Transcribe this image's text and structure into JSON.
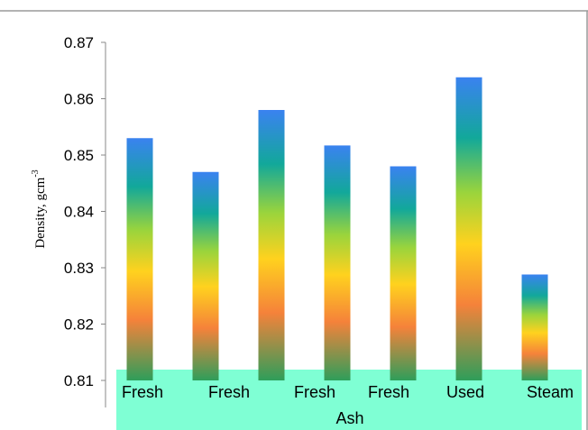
{
  "chart_data": {
    "type": "bar",
    "title": "",
    "xlabel": "Ash",
    "ylabel": "Density, gcm",
    "ylabel_superscript": "-3",
    "categories": [
      "Fresh",
      "Fresh",
      "Fresh",
      "Fresh",
      "Used",
      "Steam"
    ],
    "bars": [
      0.853,
      0.847,
      0.858,
      0.8517,
      0.848,
      0.8638,
      0.8288
    ],
    "bar_label_columns": [
      0,
      1,
      2,
      3,
      4,
      5
    ],
    "ylim": [
      0.81,
      0.87
    ],
    "yticks": [
      "0.81",
      "0.82",
      "0.83",
      "0.84",
      "0.85",
      "0.86",
      "0.87"
    ],
    "ytick_values": [
      0.81,
      0.82,
      0.83,
      0.84,
      0.85,
      0.86,
      0.87
    ],
    "grid": false,
    "legend": "none",
    "colors": {
      "bar_gradient_bottom": "#2e9e5a",
      "bar_gradient_low": "#f5823a",
      "bar_gradient_mid": "#ffd21e",
      "bar_gradient_midhigh": "#9ad43c",
      "bar_gradient_high": "#12a89a",
      "bar_gradient_top": "#3a82f0",
      "category_band": "#7fffd4",
      "axis": "#888888",
      "frame": "#9a9a9a"
    }
  }
}
